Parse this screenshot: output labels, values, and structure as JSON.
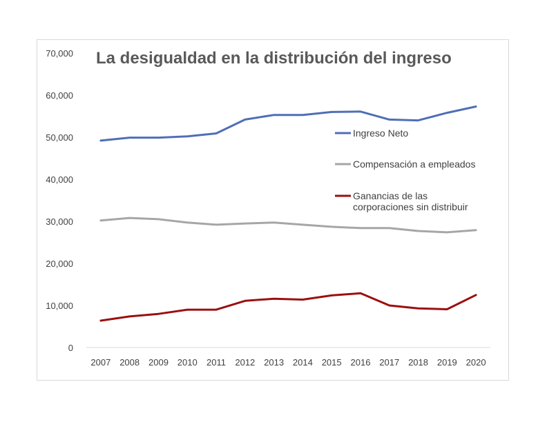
{
  "chart_data": {
    "type": "line",
    "title": "La desigualdad en la distribución del ingreso",
    "x": [
      "2007",
      "2008",
      "2009",
      "2010",
      "2011",
      "2012",
      "2013",
      "2014",
      "2015",
      "2016",
      "2017",
      "2018",
      "2019",
      "2020"
    ],
    "ylim": [
      0,
      70000
    ],
    "yticks": [
      "0",
      "10,000",
      "20,000",
      "30,000",
      "40,000",
      "50,000",
      "60,000",
      "70,000"
    ],
    "grid": false,
    "legend_position": "right",
    "series": [
      {
        "name": "Ingreso Neto",
        "color": "#4f6eb5",
        "values": [
          49200,
          49900,
          49900,
          50200,
          50900,
          54200,
          55300,
          55300,
          56000,
          56100,
          54200,
          54000,
          55800,
          57300
        ]
      },
      {
        "name": "Compensación a empleados",
        "color": "#a6a6a6",
        "values": [
          30200,
          30800,
          30500,
          29700,
          29200,
          29500,
          29700,
          29200,
          28700,
          28400,
          28400,
          27700,
          27400,
          27900
        ]
      },
      {
        "name": "Ganancias de las corporaciones sin distribuir",
        "name_lines": [
          "Ganancias de las",
          "corporaciones sin distribuir"
        ],
        "color": "#9b0f0f",
        "values": [
          6400,
          7400,
          8000,
          9000,
          9000,
          11100,
          11600,
          11400,
          12400,
          12900,
          10000,
          9300,
          9100,
          12500
        ]
      }
    ]
  }
}
